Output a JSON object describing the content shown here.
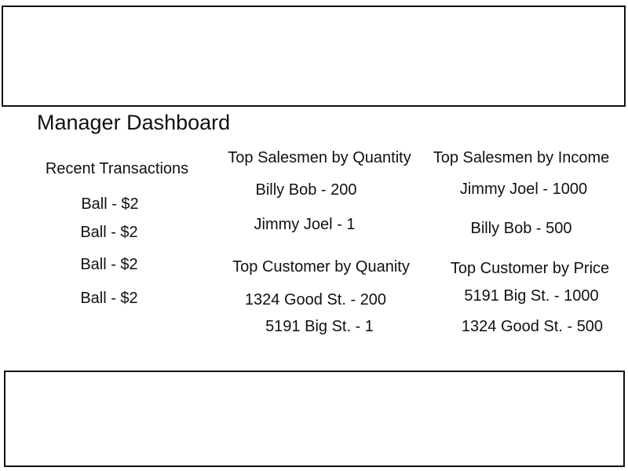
{
  "page": {
    "title": "Manager Dashboard"
  },
  "recent_transactions": {
    "heading": "Recent Transactions",
    "items": [
      "Ball - $2",
      "Ball - $2",
      "Ball - $2",
      "Ball - $2"
    ]
  },
  "top_salesmen_quantity": {
    "heading": "Top Salesmen by Quantity",
    "items": [
      "Billy Bob - 200",
      "Jimmy Joel - 1"
    ]
  },
  "top_salesmen_income": {
    "heading": "Top Salesmen by Income",
    "items": [
      "Jimmy Joel - 1000",
      "Billy Bob - 500"
    ]
  },
  "top_customer_quantity": {
    "heading": "Top Customer by Quanity",
    "items": [
      "1324 Good St. - 200",
      "5191 Big St. - 1"
    ]
  },
  "top_customer_price": {
    "heading": "Top Customer by Price",
    "items": [
      "5191 Big St. - 1000",
      "1324 Good St. - 500"
    ]
  }
}
